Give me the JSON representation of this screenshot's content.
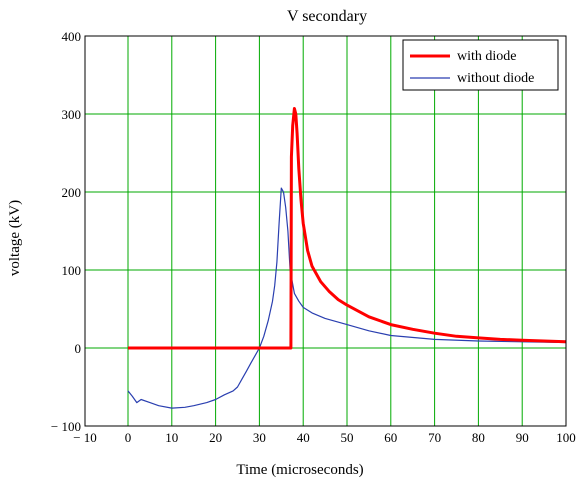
{
  "chart_data": {
    "type": "line",
    "title": "V secondary",
    "xlabel": "Time (microseconds)",
    "ylabel": "voltage (kV)",
    "xlim": [
      -10,
      100
    ],
    "ylim": [
      -100,
      400
    ],
    "xticks": [
      -10,
      0,
      10,
      20,
      30,
      40,
      50,
      60,
      70,
      80,
      90,
      100
    ],
    "yticks": [
      -100,
      0,
      100,
      200,
      300,
      400
    ],
    "grid": true,
    "grid_color": "#00aa00",
    "legend_position": "top-right",
    "series": [
      {
        "name": "with diode",
        "color": "#ff0000",
        "x": [
          0,
          37.2,
          37.3,
          37.6,
          38.0,
          38.3,
          38.6,
          39.0,
          39.5,
          40,
          41,
          42,
          44,
          46,
          48,
          50,
          55,
          60,
          65,
          70,
          75,
          80,
          85,
          90,
          95,
          100
        ],
        "y": [
          0,
          0,
          245,
          285,
          307,
          300,
          275,
          230,
          190,
          160,
          125,
          105,
          85,
          72,
          62,
          55,
          40,
          30,
          24,
          19,
          15,
          13,
          11,
          10,
          9,
          8
        ]
      },
      {
        "name": "without diode",
        "color": "#2a3fb0",
        "x": [
          0,
          1,
          2,
          3,
          5,
          7,
          10,
          13,
          15,
          18,
          20,
          22,
          24,
          25,
          26,
          27,
          28,
          29,
          30,
          31,
          32,
          33,
          33.5,
          34,
          34.5,
          35,
          35.5,
          36,
          36.5,
          37,
          38,
          39,
          40,
          42,
          45,
          50,
          55,
          60,
          70,
          80,
          90,
          100
        ],
        "y": [
          -55,
          -62,
          -70,
          -66,
          -70,
          -74,
          -77,
          -76,
          -74,
          -70,
          -66,
          -60,
          -55,
          -50,
          -40,
          -30,
          -20,
          -10,
          0,
          15,
          35,
          60,
          80,
          110,
          160,
          205,
          200,
          180,
          150,
          100,
          70,
          60,
          52,
          45,
          38,
          30,
          22,
          16,
          11,
          9,
          8,
          7
        ]
      }
    ]
  }
}
